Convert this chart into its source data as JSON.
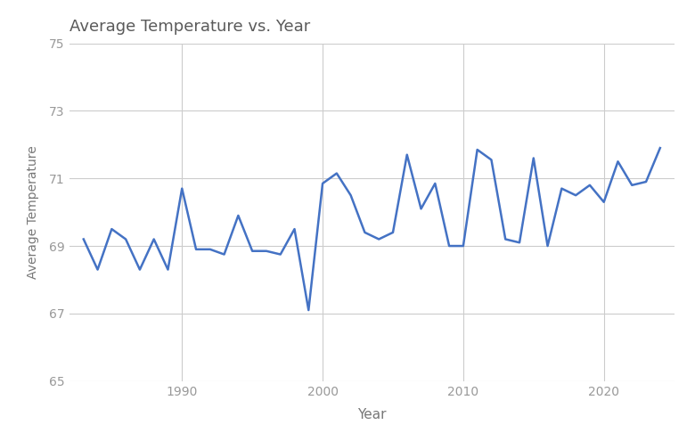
{
  "years": [
    1983,
    1984,
    1985,
    1986,
    1987,
    1988,
    1989,
    1990,
    1991,
    1992,
    1993,
    1994,
    1995,
    1996,
    1997,
    1998,
    1999,
    2000,
    2001,
    2002,
    2003,
    2004,
    2005,
    2006,
    2007,
    2008,
    2009,
    2010,
    2011,
    2012,
    2013,
    2014,
    2015,
    2016,
    2017,
    2018,
    2019,
    2020,
    2021,
    2022,
    2023,
    2024
  ],
  "temps": [
    69.2,
    68.3,
    69.5,
    69.2,
    68.3,
    69.2,
    68.3,
    70.7,
    68.9,
    68.9,
    68.75,
    69.9,
    68.85,
    68.85,
    68.75,
    69.5,
    67.1,
    70.85,
    71.15,
    70.5,
    69.4,
    69.2,
    69.4,
    71.7,
    70.1,
    70.85,
    69.0,
    69.0,
    71.85,
    71.55,
    69.2,
    69.1,
    71.6,
    69.0,
    70.7,
    70.5,
    70.8,
    70.3,
    71.5,
    70.8,
    70.9,
    71.9
  ],
  "title": "Average Temperature vs. Year",
  "xlabel": "Year",
  "ylabel": "Average Temperature",
  "line_color": "#4472C4",
  "line_width": 1.8,
  "background_color": "#ffffff",
  "grid_color": "#cccccc",
  "title_color": "#5a5a5a",
  "label_color": "#777777",
  "tick_color": "#999999",
  "ylim": [
    65,
    75
  ],
  "yticks": [
    65,
    67,
    69,
    71,
    73,
    75
  ],
  "xticks": [
    1990,
    2000,
    2010,
    2020
  ],
  "xlim_left": 1982,
  "xlim_right": 2025
}
